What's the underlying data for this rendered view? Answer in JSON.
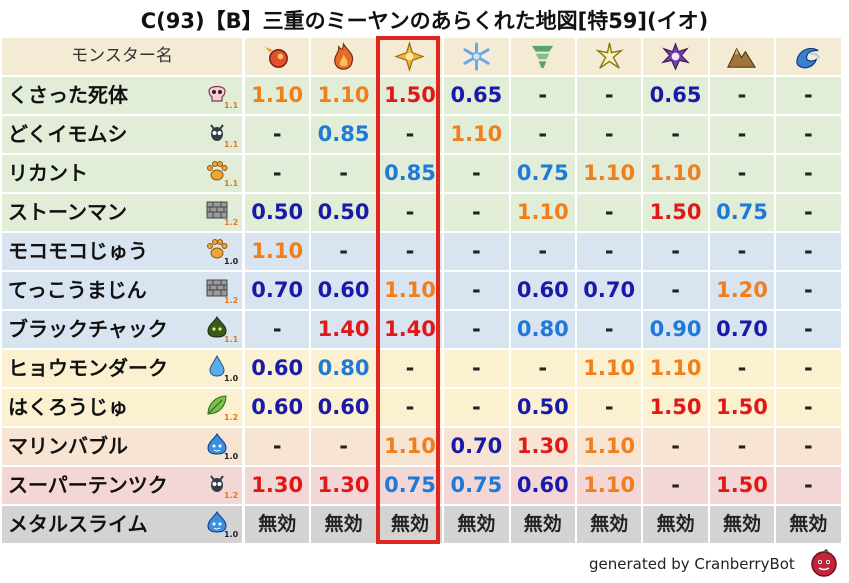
{
  "title": "C(93)【B】三重のミーヤンのあらくれた地図[特59](イオ)",
  "header_label": "モンスター名",
  "elements": [
    {
      "icon": "fire-icon",
      "color": "#e0502a"
    },
    {
      "icon": "flame-icon",
      "color": "#e66a2a"
    },
    {
      "icon": "explosion-icon",
      "color": "#f2b233"
    },
    {
      "icon": "ice-icon",
      "color": "#6aa6e8"
    },
    {
      "icon": "wind-icon",
      "color": "#5aa36a"
    },
    {
      "icon": "lightning-icon",
      "color": "#d6c44a"
    },
    {
      "icon": "dark-icon",
      "color": "#7a3ea8"
    },
    {
      "icon": "earth-icon",
      "color": "#a0743f"
    },
    {
      "icon": "water-icon",
      "color": "#3a7fd0"
    }
  ],
  "row_colors": {
    "green": "#e2edd8",
    "blue": "#d8e4f0",
    "yellow": "#fbf1d0",
    "orange": "#f8e4d2",
    "red": "#f3d6d6",
    "gray": "#d3d3d3",
    "header": "#f3ebd3"
  },
  "value_colors": {
    "orange": "#f07e1a",
    "red": "#e01818",
    "blue": "#1e7ad6",
    "darkblue": "#1a1aa8",
    "dash": "#222222"
  },
  "monsters": [
    {
      "name": "くさった死体",
      "icon": "skull-icon",
      "rank": "1.1",
      "row": "green",
      "values": [
        {
          "t": "1.10",
          "c": "orange"
        },
        {
          "t": "1.10",
          "c": "orange"
        },
        {
          "t": "1.50",
          "c": "red"
        },
        {
          "t": "0.65",
          "c": "darkblue"
        },
        {
          "t": "-",
          "c": "dash"
        },
        {
          "t": "-",
          "c": "dash"
        },
        {
          "t": "0.65",
          "c": "darkblue"
        },
        {
          "t": "-",
          "c": "dash"
        },
        {
          "t": "-",
          "c": "dash"
        }
      ]
    },
    {
      "name": "どくイモムシ",
      "icon": "bug-icon",
      "rank": "1.1",
      "row": "green",
      "values": [
        {
          "t": "-",
          "c": "dash"
        },
        {
          "t": "0.85",
          "c": "blue"
        },
        {
          "t": "-",
          "c": "dash"
        },
        {
          "t": "1.10",
          "c": "orange"
        },
        {
          "t": "-",
          "c": "dash"
        },
        {
          "t": "-",
          "c": "dash"
        },
        {
          "t": "-",
          "c": "dash"
        },
        {
          "t": "-",
          "c": "dash"
        },
        {
          "t": "-",
          "c": "dash"
        }
      ]
    },
    {
      "name": "リカント",
      "icon": "paw-icon",
      "rank": "1.1",
      "row": "green",
      "values": [
        {
          "t": "-",
          "c": "dash"
        },
        {
          "t": "-",
          "c": "dash"
        },
        {
          "t": "0.85",
          "c": "blue"
        },
        {
          "t": "-",
          "c": "dash"
        },
        {
          "t": "0.75",
          "c": "blue"
        },
        {
          "t": "1.10",
          "c": "orange"
        },
        {
          "t": "1.10",
          "c": "orange"
        },
        {
          "t": "-",
          "c": "dash"
        },
        {
          "t": "-",
          "c": "dash"
        }
      ]
    },
    {
      "name": "ストーンマン",
      "icon": "brick-icon",
      "rank": "1.2",
      "row": "green",
      "values": [
        {
          "t": "0.50",
          "c": "darkblue"
        },
        {
          "t": "0.50",
          "c": "darkblue"
        },
        {
          "t": "-",
          "c": "dash"
        },
        {
          "t": "-",
          "c": "dash"
        },
        {
          "t": "1.10",
          "c": "orange"
        },
        {
          "t": "-",
          "c": "dash"
        },
        {
          "t": "1.50",
          "c": "red"
        },
        {
          "t": "0.75",
          "c": "blue"
        },
        {
          "t": "-",
          "c": "dash"
        }
      ]
    },
    {
      "name": "モコモコじゅう",
      "icon": "paw-icon",
      "rank": "1.0",
      "row": "blue",
      "values": [
        {
          "t": "1.10",
          "c": "orange"
        },
        {
          "t": "-",
          "c": "dash"
        },
        {
          "t": "-",
          "c": "dash"
        },
        {
          "t": "-",
          "c": "dash"
        },
        {
          "t": "-",
          "c": "dash"
        },
        {
          "t": "-",
          "c": "dash"
        },
        {
          "t": "-",
          "c": "dash"
        },
        {
          "t": "-",
          "c": "dash"
        },
        {
          "t": "-",
          "c": "dash"
        }
      ]
    },
    {
      "name": "てっこうまじん",
      "icon": "brick-icon",
      "rank": "1.2",
      "row": "blue",
      "values": [
        {
          "t": "0.70",
          "c": "darkblue"
        },
        {
          "t": "0.60",
          "c": "darkblue"
        },
        {
          "t": "1.10",
          "c": "orange"
        },
        {
          "t": "-",
          "c": "dash"
        },
        {
          "t": "0.60",
          "c": "darkblue"
        },
        {
          "t": "0.70",
          "c": "darkblue"
        },
        {
          "t": "-",
          "c": "dash"
        },
        {
          "t": "1.20",
          "c": "orange"
        },
        {
          "t": "-",
          "c": "dash"
        }
      ]
    },
    {
      "name": "ブラックチャック",
      "icon": "slime-green-icon",
      "rank": "1.1",
      "row": "blue",
      "values": [
        {
          "t": "-",
          "c": "dash"
        },
        {
          "t": "1.40",
          "c": "red"
        },
        {
          "t": "1.40",
          "c": "red"
        },
        {
          "t": "-",
          "c": "dash"
        },
        {
          "t": "0.80",
          "c": "blue"
        },
        {
          "t": "-",
          "c": "dash"
        },
        {
          "t": "0.90",
          "c": "blue"
        },
        {
          "t": "0.70",
          "c": "darkblue"
        },
        {
          "t": "-",
          "c": "dash"
        }
      ]
    },
    {
      "name": "ヒョウモンダーク",
      "icon": "drop-icon",
      "rank": "1.0",
      "row": "yellow",
      "values": [
        {
          "t": "0.60",
          "c": "darkblue"
        },
        {
          "t": "0.80",
          "c": "blue"
        },
        {
          "t": "-",
          "c": "dash"
        },
        {
          "t": "-",
          "c": "dash"
        },
        {
          "t": "-",
          "c": "dash"
        },
        {
          "t": "1.10",
          "c": "orange"
        },
        {
          "t": "1.10",
          "c": "orange"
        },
        {
          "t": "-",
          "c": "dash"
        },
        {
          "t": "-",
          "c": "dash"
        }
      ]
    },
    {
      "name": "はくろうじゅ",
      "icon": "leaf-icon",
      "rank": "1.2",
      "row": "yellow",
      "values": [
        {
          "t": "0.60",
          "c": "darkblue"
        },
        {
          "t": "0.60",
          "c": "darkblue"
        },
        {
          "t": "-",
          "c": "dash"
        },
        {
          "t": "-",
          "c": "dash"
        },
        {
          "t": "0.50",
          "c": "darkblue"
        },
        {
          "t": "-",
          "c": "dash"
        },
        {
          "t": "1.50",
          "c": "red"
        },
        {
          "t": "1.50",
          "c": "red"
        },
        {
          "t": "-",
          "c": "dash"
        }
      ]
    },
    {
      "name": "マリンバブル",
      "icon": "slime-blue-icon",
      "rank": "1.0",
      "row": "orange",
      "values": [
        {
          "t": "-",
          "c": "dash"
        },
        {
          "t": "-",
          "c": "dash"
        },
        {
          "t": "1.10",
          "c": "orange"
        },
        {
          "t": "0.70",
          "c": "darkblue"
        },
        {
          "t": "1.30",
          "c": "red"
        },
        {
          "t": "1.10",
          "c": "orange"
        },
        {
          "t": "-",
          "c": "dash"
        },
        {
          "t": "-",
          "c": "dash"
        },
        {
          "t": "-",
          "c": "dash"
        }
      ]
    },
    {
      "name": "スーパーテンツク",
      "icon": "bug-icon",
      "rank": "1.2",
      "row": "red",
      "values": [
        {
          "t": "1.30",
          "c": "red"
        },
        {
          "t": "1.30",
          "c": "red"
        },
        {
          "t": "0.75",
          "c": "blue"
        },
        {
          "t": "0.75",
          "c": "blue"
        },
        {
          "t": "0.60",
          "c": "darkblue"
        },
        {
          "t": "1.10",
          "c": "orange"
        },
        {
          "t": "-",
          "c": "dash"
        },
        {
          "t": "1.50",
          "c": "red"
        },
        {
          "t": "-",
          "c": "dash"
        }
      ]
    },
    {
      "name": "メタルスライム",
      "icon": "slime-blue-icon",
      "rank": "1.0",
      "row": "gray",
      "values": [
        {
          "t": "無効",
          "c": "dash"
        },
        {
          "t": "無効",
          "c": "dash"
        },
        {
          "t": "無効",
          "c": "dash"
        },
        {
          "t": "無効",
          "c": "dash"
        },
        {
          "t": "無効",
          "c": "dash"
        },
        {
          "t": "無効",
          "c": "dash"
        },
        {
          "t": "無効",
          "c": "dash"
        },
        {
          "t": "無効",
          "c": "dash"
        },
        {
          "t": "無効",
          "c": "dash"
        }
      ]
    }
  ],
  "footer": "generated by CranberryBot",
  "footer_icon": "cranberry-bot-icon"
}
